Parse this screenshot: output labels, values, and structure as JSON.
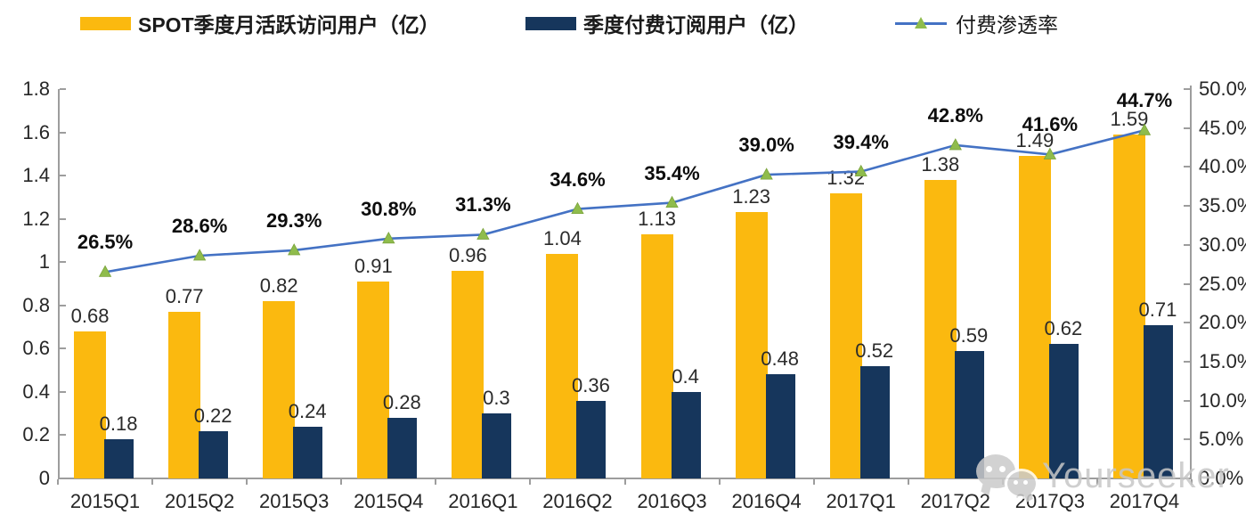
{
  "legend": {
    "items": [
      {
        "label": "SPOT季度月活跃访问用户（亿）",
        "swatch": "bar",
        "color": "#fbb90f"
      },
      {
        "label": "季度付费订阅用户（亿）",
        "swatch": "bar",
        "color": "#16365c"
      },
      {
        "label": "付费渗透率",
        "swatch": "line-marker",
        "line_color": "#4472c4",
        "marker_color": "#8fbc4c"
      }
    ]
  },
  "chart_data": {
    "type": "bar",
    "subtype": "combo-bar-line-dual-axis",
    "title": "",
    "categories": [
      "2015Q1",
      "2015Q2",
      "2015Q3",
      "2015Q4",
      "2016Q1",
      "2016Q2",
      "2016Q3",
      "2016Q4",
      "2017Q1",
      "2017Q2",
      "2017Q3",
      "2017Q4"
    ],
    "series": [
      {
        "name": "SPOT季度月活跃访问用户（亿）",
        "type": "bar",
        "axis": "left",
        "color": "#fbb90f",
        "values": [
          0.68,
          0.77,
          0.82,
          0.91,
          0.96,
          1.04,
          1.13,
          1.23,
          1.32,
          1.38,
          1.49,
          1.59
        ],
        "labels": [
          "0.68",
          "0.77",
          "0.82",
          "0.91",
          "0.96",
          "1.04",
          "1.13",
          "1.23",
          "1.32",
          "1.38",
          "1.49",
          "1.59"
        ]
      },
      {
        "name": "季度付费订阅用户（亿）",
        "type": "bar",
        "axis": "left",
        "color": "#16365c",
        "values": [
          0.18,
          0.22,
          0.24,
          0.28,
          0.3,
          0.36,
          0.4,
          0.48,
          0.52,
          0.59,
          0.62,
          0.71
        ],
        "labels": [
          "0.18",
          "0.22",
          "0.24",
          "0.28",
          "0.3",
          "0.36",
          "0.4",
          "0.48",
          "0.52",
          "0.59",
          "0.62",
          "0.71"
        ]
      },
      {
        "name": "付费渗透率",
        "type": "line",
        "axis": "right",
        "color": "#4472c4",
        "marker": "triangle",
        "marker_color": "#8fbc4c",
        "values": [
          26.5,
          28.6,
          29.3,
          30.8,
          31.3,
          34.6,
          35.4,
          39.0,
          39.4,
          42.8,
          41.6,
          44.7
        ],
        "labels": [
          "26.5%",
          "28.6%",
          "29.3%",
          "30.8%",
          "31.3%",
          "34.6%",
          "35.4%",
          "39.0%",
          "39.4%",
          "42.8%",
          "41.6%",
          "44.7%"
        ]
      }
    ],
    "left_axis": {
      "min": 0,
      "max": 1.8,
      "step": 0.2,
      "tick_labels": [
        "0",
        "0.2",
        "0.4",
        "0.6",
        "0.8",
        "1",
        "1.2",
        "1.4",
        "1.6",
        "1.8"
      ]
    },
    "right_axis": {
      "min": 0,
      "max": 50,
      "step": 5,
      "tick_labels": [
        "0.0%",
        "5.0%",
        "10.0%",
        "15.0%",
        "20.0%",
        "25.0%",
        "30.0%",
        "35.0%",
        "40.0%",
        "45.0%",
        "50.0%"
      ]
    },
    "grid": false,
    "legend_position": "top",
    "axis_color": "#9d9d9d"
  },
  "watermark": {
    "text": "Yourseeker",
    "icon": "wechat-icon"
  }
}
